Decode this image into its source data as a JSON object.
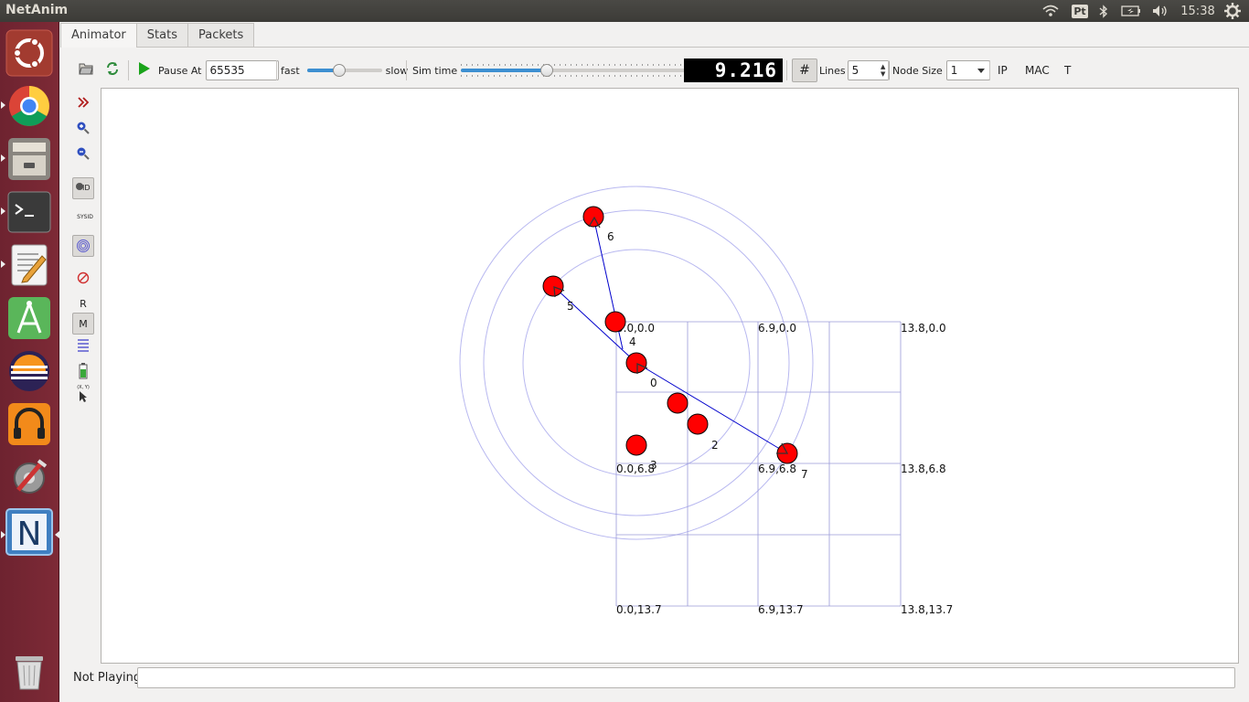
{
  "app": {
    "title": "NetAnim"
  },
  "tray": {
    "keyboard": "Pt",
    "clock": "15:38"
  },
  "launcher": {
    "items": [
      "ubuntu-dash",
      "chrome",
      "file-manager",
      "terminal",
      "text-editor",
      "android-studio",
      "eclipse",
      "music-player",
      "system-settings",
      "netanim",
      "trash"
    ],
    "netanim_letter": "N"
  },
  "tabs": [
    "Animator",
    "Stats",
    "Packets"
  ],
  "toolbar": {
    "pause_at_label": "Pause At",
    "pause_at_value": "65535",
    "fast_label": "fast",
    "slow_label": "slow",
    "speed_level": 0.43,
    "sim_time_label": "Sim time",
    "sim_time_level": 0.38,
    "sim_time_display": "9.216",
    "grid_icon": "#",
    "lines_label": "Lines",
    "lines_value": "5",
    "node_size_label": "Node Size",
    "node_size_value": "1",
    "ip_label": "IP",
    "mac_label": "MAC",
    "t_label": "T"
  },
  "side_tools": {
    "id_label": "ID",
    "sysid_label": "SYSID",
    "r_label": "R",
    "m_label": "M",
    "xy_label": "(X, Y)"
  },
  "grid_labels": [
    "0.0,0.0",
    "6.9,0.0",
    "13.8,0.0",
    "0.0,6.8",
    "6.9,6.8",
    "13.8,6.8",
    "0.0,13.7",
    "6.9,13.7",
    "13.8,13.7"
  ],
  "nodes": [
    {
      "id": "0",
      "label": "0"
    },
    {
      "id": "1",
      "label": ""
    },
    {
      "id": "2",
      "label": "2"
    },
    {
      "id": "3",
      "label": "3"
    },
    {
      "id": "4",
      "label": "4"
    },
    {
      "id": "5",
      "label": "5"
    },
    {
      "id": "6",
      "label": "6"
    },
    {
      "id": "7",
      "label": "7"
    }
  ],
  "colors": {
    "node_fill": "#ff0000",
    "packet_line": "#0000cc",
    "range_ring": "#b8b8f0",
    "grid_line": "#9a9ad8"
  },
  "status": {
    "text": "Not Playing",
    "message": ""
  }
}
